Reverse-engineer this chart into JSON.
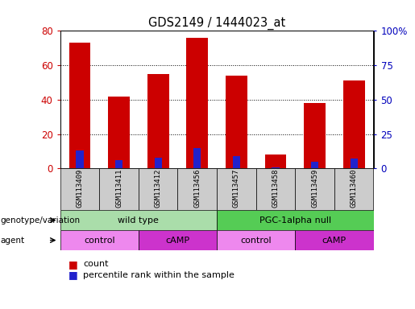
{
  "title": "GDS2149 / 1444023_at",
  "samples": [
    "GSM113409",
    "GSM113411",
    "GSM113412",
    "GSM113456",
    "GSM113457",
    "GSM113458",
    "GSM113459",
    "GSM113460"
  ],
  "count_values": [
    73,
    42,
    55,
    76,
    54,
    8,
    38,
    51
  ],
  "percentile_values": [
    13,
    6,
    8,
    15,
    9,
    1,
    5,
    7
  ],
  "left_ylim": [
    0,
    80
  ],
  "right_ylim": [
    0,
    100
  ],
  "left_yticks": [
    0,
    20,
    40,
    60,
    80
  ],
  "right_yticks": [
    0,
    25,
    50,
    75,
    100
  ],
  "right_yticklabels": [
    "0",
    "25",
    "50",
    "75",
    "100%"
  ],
  "bar_color": "#cc0000",
  "percentile_color": "#2222cc",
  "genotype_groups": [
    {
      "label": "wild type",
      "start": 0,
      "end": 4,
      "color": "#aaeea a"
    },
    {
      "label": "PGC-1alpha null",
      "start": 4,
      "end": 8,
      "color": "#55cc55"
    }
  ],
  "agent_groups": [
    {
      "label": "control",
      "start": 0,
      "end": 2,
      "color": "#ee88ee"
    },
    {
      "label": "cAMP",
      "start": 2,
      "end": 4,
      "color": "#cc33cc"
    },
    {
      "label": "control",
      "start": 4,
      "end": 6,
      "color": "#ee88ee"
    },
    {
      "label": "cAMP",
      "start": 6,
      "end": 8,
      "color": "#cc33cc"
    }
  ],
  "genotype_colors": [
    "#aaddaa",
    "#55cc55"
  ],
  "agent_light_color": "#ee88ee",
  "agent_dark_color": "#cc33cc",
  "legend_count_color": "#cc0000",
  "legend_percentile_color": "#2222cc",
  "tick_label_color_left": "#cc0000",
  "tick_label_color_right": "#0000bb",
  "sample_bg_color": "#cccccc",
  "fig_bg_color": "#ffffff"
}
